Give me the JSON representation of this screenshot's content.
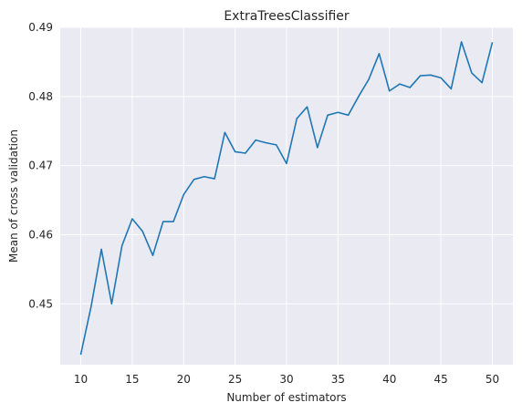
{
  "chart_data": {
    "type": "line",
    "title": "ExtraTreesClassifier",
    "xlabel": "Number of estimators",
    "ylabel": "Mean of cross validation",
    "xlim": [
      8.0,
      52.0
    ],
    "ylim": [
      0.4412,
      0.49
    ],
    "xticks": [
      "10",
      "15",
      "20",
      "25",
      "30",
      "35",
      "40",
      "45",
      "50"
    ],
    "yticks": [
      "0.45",
      "0.46",
      "0.47",
      "0.48",
      "0.49"
    ],
    "grid": true,
    "colors": {
      "background": "#eaeaf2",
      "grid": "#ffffff",
      "line": "#1f77b4"
    },
    "series": [
      {
        "x": [
          10,
          11,
          12,
          13,
          14,
          15,
          16,
          17,
          18,
          19,
          20,
          21,
          22,
          23,
          24,
          25,
          26,
          27,
          28,
          29,
          30,
          31,
          32,
          33,
          34,
          35,
          36,
          37,
          38,
          39,
          40,
          41,
          42,
          43,
          44,
          45,
          46,
          47,
          48,
          49,
          50
        ],
        "values": [
          0.4427,
          0.4496,
          0.4579,
          0.45,
          0.4584,
          0.4623,
          0.4605,
          0.457,
          0.4619,
          0.4619,
          0.4658,
          0.468,
          0.4684,
          0.4681,
          0.4748,
          0.472,
          0.4718,
          0.4737,
          0.4733,
          0.473,
          0.4703,
          0.4768,
          0.4785,
          0.4726,
          0.4773,
          0.4777,
          0.4773,
          0.48,
          0.4825,
          0.4862,
          0.4808,
          0.4818,
          0.4813,
          0.483,
          0.4831,
          0.4827,
          0.4811,
          0.4879,
          0.4834,
          0.482,
          0.4878
        ]
      }
    ]
  }
}
